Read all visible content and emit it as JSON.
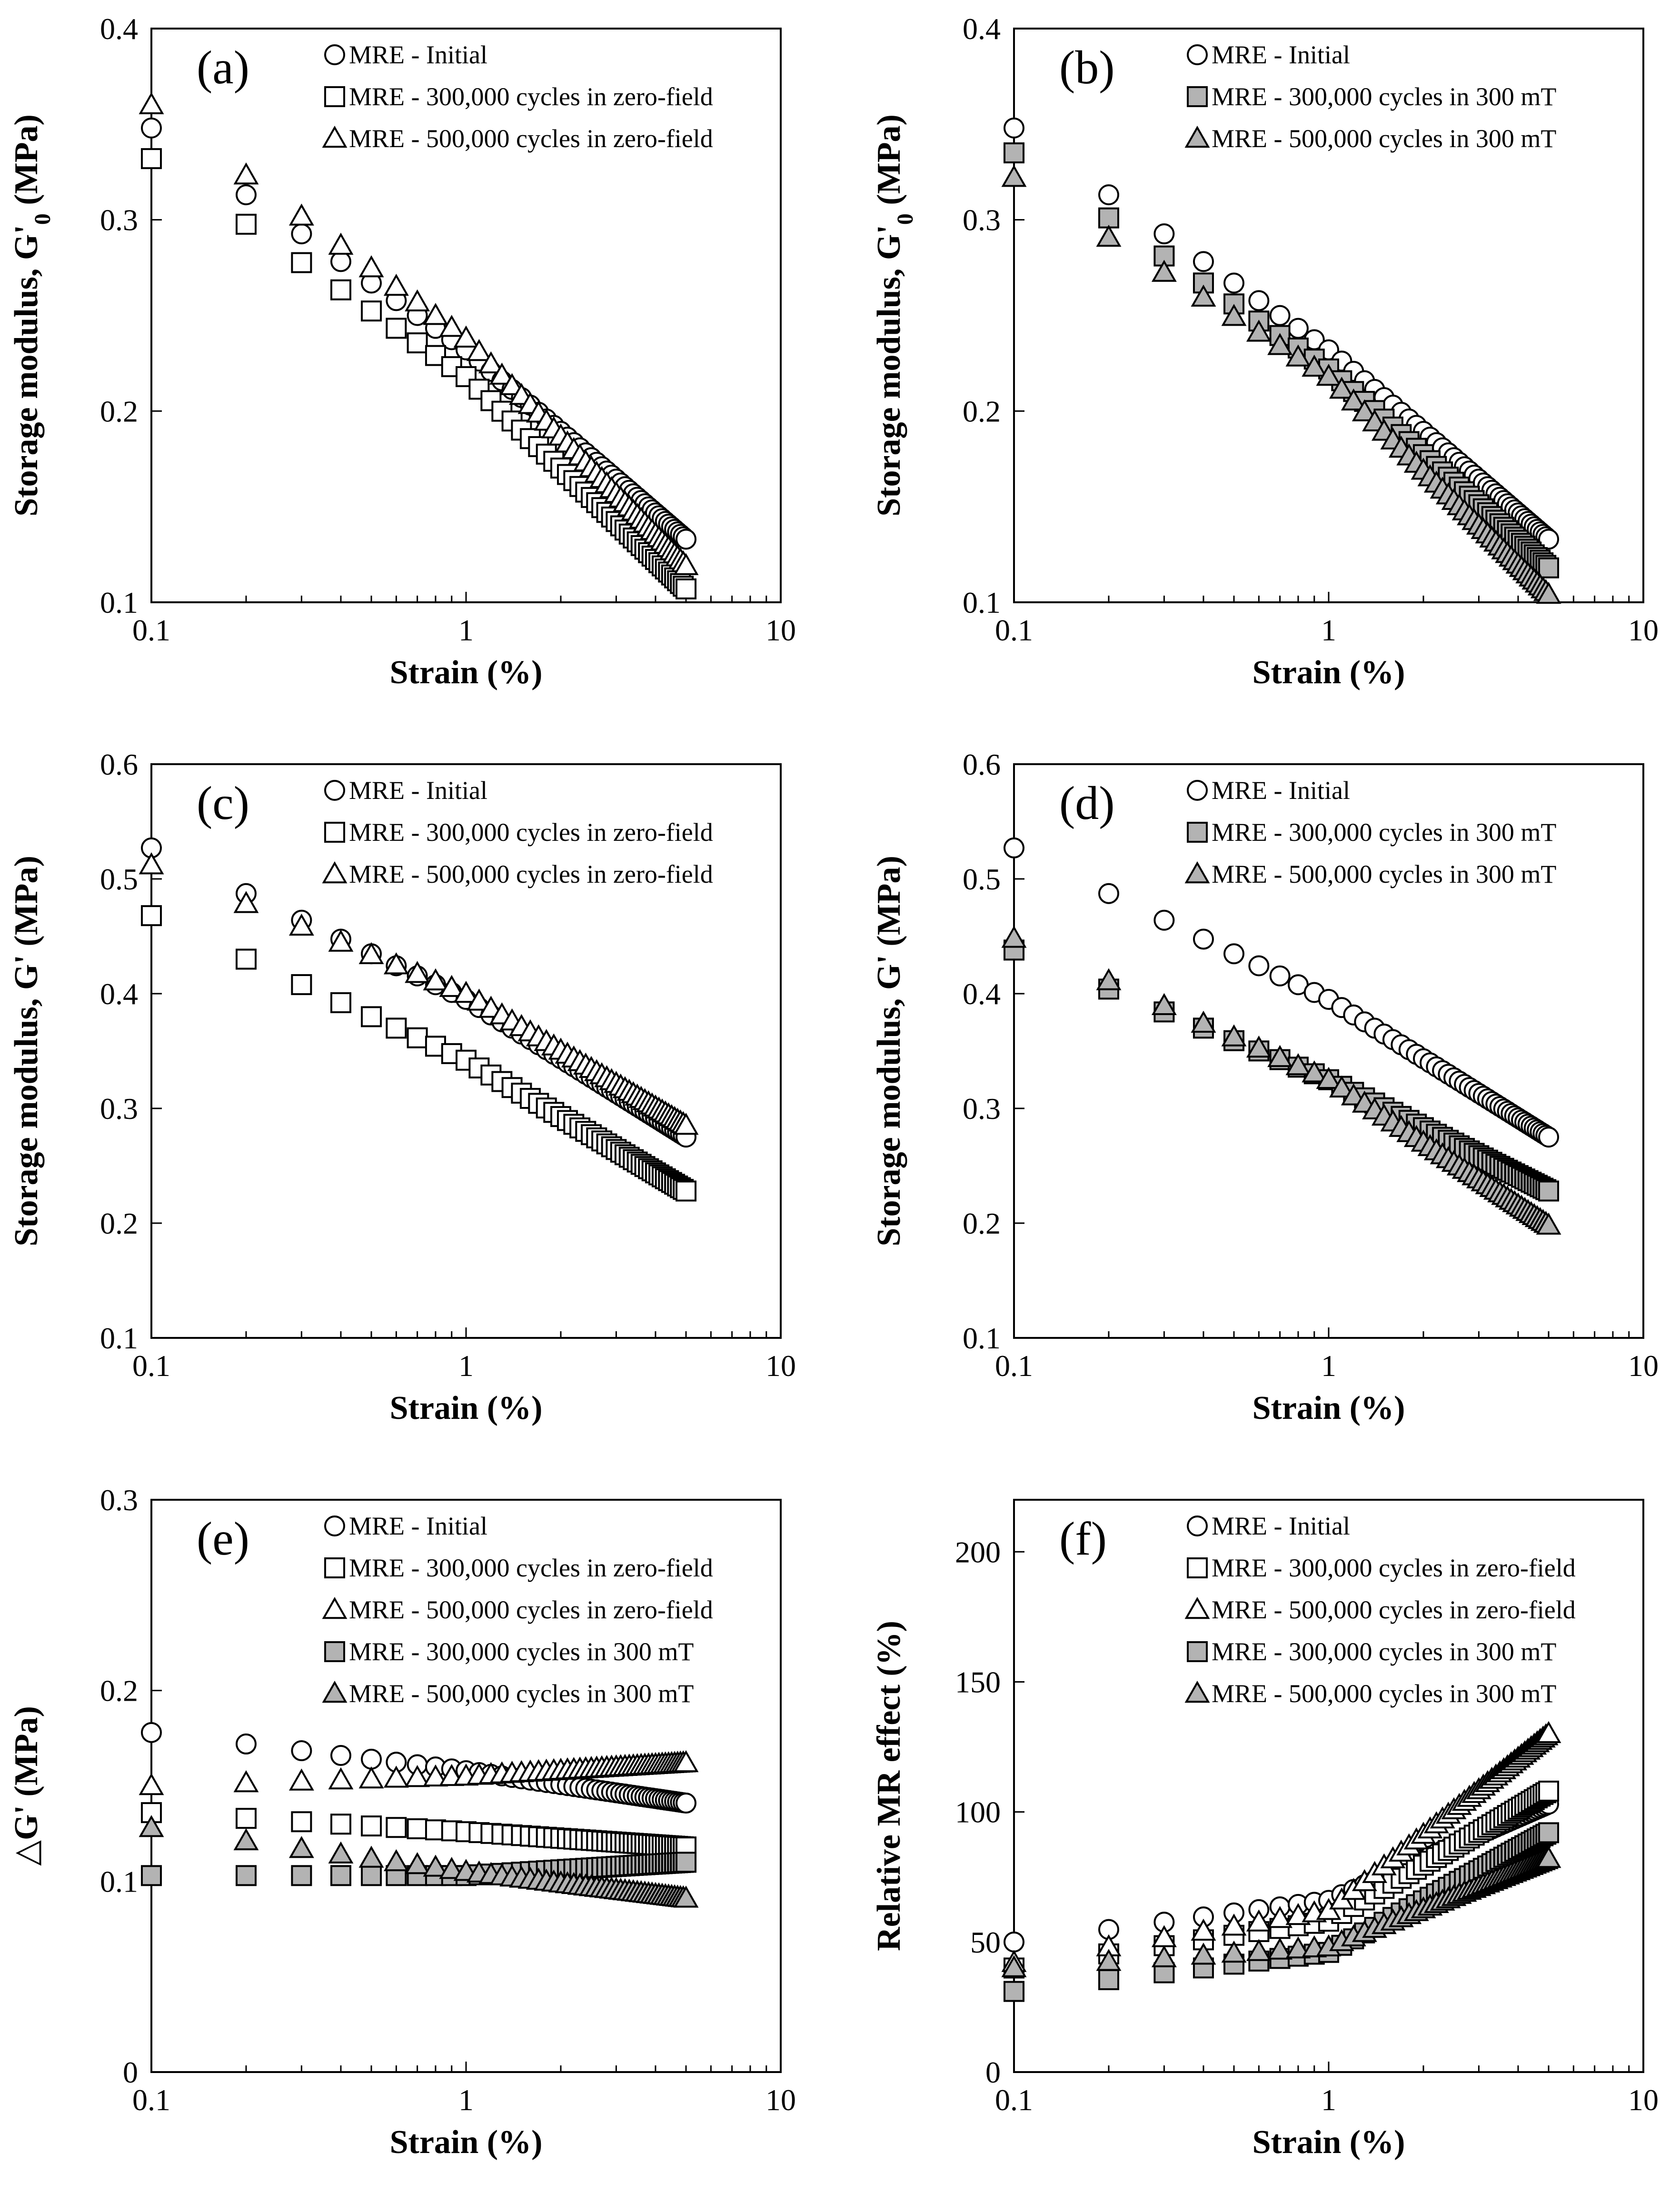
{
  "colors": {
    "open_fill": "#ffffff",
    "filled_fill": "#b3b3b3",
    "stroke": "#000000"
  },
  "strain_x": [
    0.1,
    0.2,
    0.3,
    0.4,
    0.5,
    0.6,
    0.7,
    0.8,
    0.9,
    1.0,
    1.1,
    1.2,
    1.3,
    1.4,
    1.5,
    1.6,
    1.7,
    1.8,
    1.9,
    2.0,
    2.1,
    2.2,
    2.3,
    2.4,
    2.5,
    2.6,
    2.7,
    2.8,
    2.9,
    3.0,
    3.1,
    3.2,
    3.3,
    3.4,
    3.5,
    3.6,
    3.7,
    3.8,
    3.9,
    4.0,
    4.1,
    4.2,
    4.3,
    4.4,
    4.5,
    4.6,
    4.7,
    4.8,
    4.9,
    5.0
  ],
  "chart_data": [
    {
      "id": "a",
      "type": "scatter",
      "panel_label": "(a)",
      "xlabel": "Strain (%)",
      "ylabel": "Storage modulus, G'0 (MPa)",
      "ylabel_main": "Storage modulus, G'",
      "ylabel_sub": "0",
      "ylabel_end": " (MPa)",
      "xscale": "log",
      "xlim": [
        0.1,
        10
      ],
      "xticks": [
        0.1,
        1,
        10
      ],
      "xtick_labels": [
        "0.1",
        "1",
        "10"
      ],
      "ylim": [
        0.1,
        0.4
      ],
      "yticks": [
        0.1,
        0.2,
        0.3,
        0.4
      ],
      "ytick_labels": [
        "0.1",
        "0.2",
        "0.3",
        "0.4"
      ],
      "legend_position": "top-left",
      "series": [
        {
          "name": "MRE - Initial",
          "marker": "circle",
          "fill": "open",
          "y_at_0.1": 0.348,
          "y_at_1": 0.232,
          "y_at_5": 0.133
        },
        {
          "name": "MRE - 300,000 cycles in zero-field",
          "marker": "square",
          "fill": "open",
          "y_at_0.1": 0.332,
          "y_at_1": 0.218,
          "y_at_5": 0.107
        },
        {
          "name": "MRE - 500,000 cycles in zero-field",
          "marker": "triangle",
          "fill": "open",
          "y_at_0.1": 0.36,
          "y_at_1": 0.238,
          "y_at_5": 0.119
        }
      ]
    },
    {
      "id": "b",
      "type": "scatter",
      "panel_label": "(b)",
      "xlabel": "Strain (%)",
      "ylabel": "Storage modulus, G'0 (MPa)",
      "ylabel_main": "Storage modulus, G'",
      "ylabel_sub": "0",
      "ylabel_end": " (MPa)",
      "xscale": "log",
      "xlim": [
        0.1,
        10
      ],
      "xticks": [
        0.1,
        1,
        10
      ],
      "xtick_labels": [
        "0.1",
        "1",
        "10"
      ],
      "ylim": [
        0.1,
        0.4
      ],
      "yticks": [
        0.1,
        0.2,
        0.3,
        0.4
      ],
      "ytick_labels": [
        "0.1",
        "0.2",
        "0.3",
        "0.4"
      ],
      "legend_position": "top-left",
      "series": [
        {
          "name": "MRE - Initial",
          "marker": "circle",
          "fill": "open",
          "y_at_0.1": 0.348,
          "y_at_1": 0.232,
          "y_at_5": 0.133
        },
        {
          "name": "MRE - 300,000 cycles in 300 mT",
          "marker": "square",
          "fill": "filled",
          "y_at_0.1": 0.335,
          "y_at_1": 0.222,
          "y_at_5": 0.118
        },
        {
          "name": "MRE - 500,000 cycles in 300 mT",
          "marker": "triangle",
          "fill": "filled",
          "y_at_0.1": 0.322,
          "y_at_1": 0.218,
          "y_at_5": 0.104
        }
      ]
    },
    {
      "id": "c",
      "type": "scatter",
      "panel_label": "(c)",
      "xlabel": "Strain (%)",
      "ylabel": "Storage modulus, G' (MPa)",
      "ylabel_main": "Storage modulus, G' (MPa)",
      "ylabel_sub": "",
      "ylabel_end": "",
      "xscale": "log",
      "xlim": [
        0.1,
        10
      ],
      "xticks": [
        0.1,
        1,
        10
      ],
      "xtick_labels": [
        "0.1",
        "1",
        "10"
      ],
      "ylim": [
        0.1,
        0.6
      ],
      "yticks": [
        0.1,
        0.2,
        0.3,
        0.4,
        0.5,
        0.6
      ],
      "ytick_labels": [
        "0.1",
        "0.2",
        "0.3",
        "0.4",
        "0.5",
        "0.6"
      ],
      "legend_position": "top-left",
      "series": [
        {
          "name": "MRE - Initial",
          "marker": "circle",
          "fill": "open",
          "y_at_0.1": 0.527,
          "y_at_1": 0.395,
          "y_at_5": 0.275
        },
        {
          "name": "MRE - 300,000 cycles in zero-field",
          "marker": "square",
          "fill": "open",
          "y_at_0.1": 0.468,
          "y_at_1": 0.342,
          "y_at_5": 0.228
        },
        {
          "name": "MRE - 500,000 cycles in zero-field",
          "marker": "triangle",
          "fill": "open",
          "y_at_0.1": 0.512,
          "y_at_1": 0.4,
          "y_at_5": 0.285
        }
      ]
    },
    {
      "id": "d",
      "type": "scatter",
      "panel_label": "(d)",
      "xlabel": "Strain (%)",
      "ylabel": "Storage modulus, G' (MPa)",
      "ylabel_main": "Storage modulus, G' (MPa)",
      "ylabel_sub": "",
      "ylabel_end": "",
      "xscale": "log",
      "xlim": [
        0.1,
        10
      ],
      "xticks": [
        0.1,
        1,
        10
      ],
      "xtick_labels": [
        "0.1",
        "1",
        "10"
      ],
      "ylim": [
        0.1,
        0.6
      ],
      "yticks": [
        0.1,
        0.2,
        0.3,
        0.4,
        0.5,
        0.6
      ],
      "ytick_labels": [
        "0.1",
        "0.2",
        "0.3",
        "0.4",
        "0.5",
        "0.6"
      ],
      "legend_position": "top-left",
      "series": [
        {
          "name": "MRE - Initial",
          "marker": "circle",
          "fill": "open",
          "y_at_0.1": 0.527,
          "y_at_1": 0.395,
          "y_at_5": 0.275
        },
        {
          "name": "MRE - 300,000 cycles in 300 mT",
          "marker": "square",
          "fill": "filled",
          "y_at_0.1": 0.438,
          "y_at_1": 0.325,
          "y_at_5": 0.228
        },
        {
          "name": "MRE - 500,000 cycles in 300 mT",
          "marker": "triangle",
          "fill": "filled",
          "y_at_0.1": 0.448,
          "y_at_1": 0.325,
          "y_at_5": 0.198
        }
      ]
    },
    {
      "id": "e",
      "type": "scatter",
      "panel_label": "(e)",
      "xlabel": "Strain (%)",
      "ylabel": "△G' (MPa)",
      "ylabel_main": "△G' (MPa)",
      "ylabel_sub": "",
      "ylabel_end": "",
      "xscale": "log",
      "xlim": [
        0.1,
        10
      ],
      "xticks": [
        0.1,
        1,
        10
      ],
      "xtick_labels": [
        "0.1",
        "1",
        "10"
      ],
      "ylim": [
        0,
        0.3
      ],
      "yticks": [
        0,
        0.1,
        0.2,
        0.3
      ],
      "ytick_labels": [
        "0",
        "0.1",
        "0.2",
        "0.3"
      ],
      "legend_position": "top-left",
      "series": [
        {
          "name": "MRE - Initial",
          "marker": "circle",
          "fill": "open",
          "y_at_0.1": 0.178,
          "y_at_1": 0.158,
          "y_at_5": 0.141
        },
        {
          "name": "MRE - 300,000 cycles in zero-field",
          "marker": "square",
          "fill": "open",
          "y_at_0.1": 0.136,
          "y_at_1": 0.126,
          "y_at_5": 0.118
        },
        {
          "name": "MRE - 500,000 cycles in zero-field",
          "marker": "triangle",
          "fill": "open",
          "y_at_0.1": 0.15,
          "y_at_1": 0.155,
          "y_at_5": 0.162
        },
        {
          "name": "MRE - 300,000 cycles in 300 mT",
          "marker": "square",
          "fill": "filled",
          "y_at_0.1": 0.103,
          "y_at_1": 0.103,
          "y_at_5": 0.11
        },
        {
          "name": "MRE - 500,000 cycles in 300 mT",
          "marker": "triangle",
          "fill": "filled",
          "y_at_0.1": 0.128,
          "y_at_1": 0.105,
          "y_at_5": 0.091
        }
      ]
    },
    {
      "id": "f",
      "type": "scatter",
      "panel_label": "(f)",
      "xlabel": "Strain (%)",
      "ylabel": "Relative MR effect (%)",
      "ylabel_main": "Relative MR effect (%)",
      "ylabel_sub": "",
      "ylabel_end": "",
      "xscale": "log",
      "xlim": [
        0.1,
        10
      ],
      "xticks": [
        0.1,
        1,
        10
      ],
      "xtick_labels": [
        "0.1",
        "1",
        "10"
      ],
      "ylim": [
        0,
        220
      ],
      "yticks": [
        0,
        50,
        100,
        150,
        200
      ],
      "ytick_labels": [
        "0",
        "50",
        "100",
        "150",
        "200"
      ],
      "legend_position": "top-left",
      "series": [
        {
          "name": "MRE - Initial",
          "marker": "circle",
          "fill": "open",
          "y_at_0.1": 50,
          "y_at_1": 66,
          "y_at_5": 103
        },
        {
          "name": "MRE - 300,000 cycles in zero-field",
          "marker": "square",
          "fill": "open",
          "y_at_0.1": 40,
          "y_at_1": 58,
          "y_at_5": 108
        },
        {
          "name": "MRE - 500,000 cycles in zero-field",
          "marker": "triangle",
          "fill": "open",
          "y_at_0.1": 42,
          "y_at_1": 62,
          "y_at_5": 130
        },
        {
          "name": "MRE - 300,000 cycles in 300 mT",
          "marker": "square",
          "fill": "filled",
          "y_at_0.1": 31,
          "y_at_1": 46,
          "y_at_5": 92
        },
        {
          "name": "MRE - 500,000 cycles in 300 mT",
          "marker": "triangle",
          "fill": "filled",
          "y_at_0.1": 40,
          "y_at_1": 48,
          "y_at_5": 82
        }
      ]
    }
  ]
}
